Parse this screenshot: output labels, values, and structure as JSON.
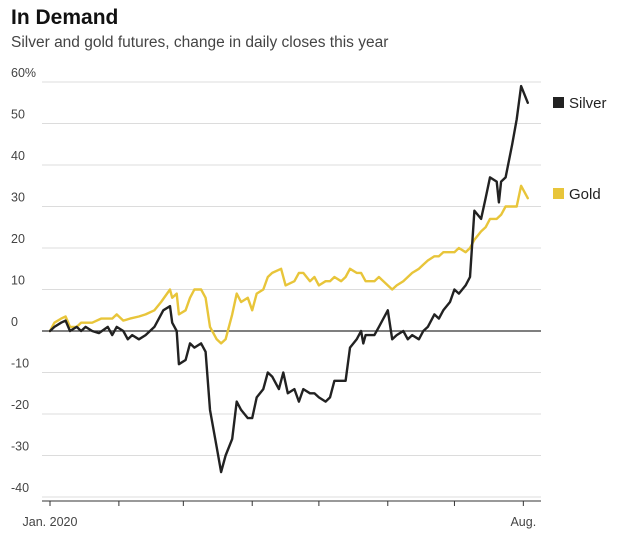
{
  "header": {
    "title": "In Demand",
    "subtitle": "Silver and gold futures, change in daily closes this year"
  },
  "chart_data": {
    "type": "line",
    "title": "In Demand",
    "subtitle": "Silver and gold futures, change in daily closes this year",
    "ylim": [
      -40,
      60
    ],
    "y_ticks": [
      {
        "value": 60,
        "label": "60%"
      },
      {
        "value": 50,
        "label": "50"
      },
      {
        "value": 40,
        "label": "40"
      },
      {
        "value": 30,
        "label": "30"
      },
      {
        "value": 20,
        "label": "20"
      },
      {
        "value": 10,
        "label": "10"
      },
      {
        "value": 0,
        "label": "0"
      },
      {
        "value": -10,
        "label": "-10"
      },
      {
        "value": -20,
        "label": "-20"
      },
      {
        "value": -30,
        "label": "-30"
      },
      {
        "value": -40,
        "label": "-40"
      }
    ],
    "x_range": [
      "2020-01-01",
      "2020-08-04"
    ],
    "x_ticks": [
      {
        "date": "2020-01-01",
        "label": "Jan. 2020"
      },
      {
        "date": "2020-02-01",
        "label": ""
      },
      {
        "date": "2020-03-01",
        "label": ""
      },
      {
        "date": "2020-04-01",
        "label": ""
      },
      {
        "date": "2020-05-01",
        "label": ""
      },
      {
        "date": "2020-06-01",
        "label": ""
      },
      {
        "date": "2020-07-01",
        "label": ""
      },
      {
        "date": "2020-08-01",
        "label": "Aug."
      }
    ],
    "grid": true,
    "legend": "right, at line ends",
    "series": [
      {
        "name": "Silver",
        "color": "#222222",
        "points": [
          [
            "2020-01-01",
            0
          ],
          [
            "2020-01-03",
            1
          ],
          [
            "2020-01-06",
            2
          ],
          [
            "2020-01-08",
            2.5
          ],
          [
            "2020-01-10",
            0
          ],
          [
            "2020-01-13",
            1
          ],
          [
            "2020-01-15",
            0
          ],
          [
            "2020-01-17",
            1
          ],
          [
            "2020-01-20",
            0
          ],
          [
            "2020-01-23",
            -0.5
          ],
          [
            "2020-01-27",
            1
          ],
          [
            "2020-01-29",
            -1
          ],
          [
            "2020-01-31",
            1
          ],
          [
            "2020-02-03",
            0
          ],
          [
            "2020-02-05",
            -2
          ],
          [
            "2020-02-07",
            -1
          ],
          [
            "2020-02-10",
            -2
          ],
          [
            "2020-02-13",
            -1
          ],
          [
            "2020-02-17",
            1
          ],
          [
            "2020-02-19",
            3
          ],
          [
            "2020-02-21",
            5
          ],
          [
            "2020-02-24",
            6
          ],
          [
            "2020-02-25",
            2
          ],
          [
            "2020-02-27",
            0
          ],
          [
            "2020-02-28",
            -8
          ],
          [
            "2020-03-02",
            -7
          ],
          [
            "2020-03-04",
            -3
          ],
          [
            "2020-03-06",
            -4
          ],
          [
            "2020-03-09",
            -3
          ],
          [
            "2020-03-11",
            -5
          ],
          [
            "2020-03-13",
            -19
          ],
          [
            "2020-03-16",
            -28
          ],
          [
            "2020-03-18",
            -34
          ],
          [
            "2020-03-20",
            -30
          ],
          [
            "2020-03-23",
            -26
          ],
          [
            "2020-03-25",
            -17
          ],
          [
            "2020-03-27",
            -19
          ],
          [
            "2020-03-30",
            -21
          ],
          [
            "2020-04-01",
            -21
          ],
          [
            "2020-04-03",
            -16
          ],
          [
            "2020-04-06",
            -14
          ],
          [
            "2020-04-08",
            -10
          ],
          [
            "2020-04-10",
            -11
          ],
          [
            "2020-04-13",
            -14
          ],
          [
            "2020-04-15",
            -10
          ],
          [
            "2020-04-17",
            -15
          ],
          [
            "2020-04-20",
            -14
          ],
          [
            "2020-04-22",
            -17
          ],
          [
            "2020-04-24",
            -14
          ],
          [
            "2020-04-27",
            -15
          ],
          [
            "2020-04-29",
            -15
          ],
          [
            "2020-05-01",
            -16
          ],
          [
            "2020-05-04",
            -17
          ],
          [
            "2020-05-06",
            -16
          ],
          [
            "2020-05-08",
            -12
          ],
          [
            "2020-05-11",
            -12
          ],
          [
            "2020-05-13",
            -12
          ],
          [
            "2020-05-15",
            -4
          ],
          [
            "2020-05-18",
            -2
          ],
          [
            "2020-05-20",
            0
          ],
          [
            "2020-05-21",
            -3
          ],
          [
            "2020-05-22",
            -1
          ],
          [
            "2020-05-26",
            -1
          ],
          [
            "2020-05-28",
            1
          ],
          [
            "2020-06-01",
            5
          ],
          [
            "2020-06-03",
            -2
          ],
          [
            "2020-06-05",
            -1
          ],
          [
            "2020-06-08",
            0
          ],
          [
            "2020-06-10",
            -2
          ],
          [
            "2020-06-12",
            -1
          ],
          [
            "2020-06-15",
            -2
          ],
          [
            "2020-06-17",
            0
          ],
          [
            "2020-06-19",
            1
          ],
          [
            "2020-06-22",
            4
          ],
          [
            "2020-06-24",
            3
          ],
          [
            "2020-06-26",
            5
          ],
          [
            "2020-06-29",
            7
          ],
          [
            "2020-07-01",
            10
          ],
          [
            "2020-07-03",
            9
          ],
          [
            "2020-07-06",
            11
          ],
          [
            "2020-07-08",
            13
          ],
          [
            "2020-07-10",
            29
          ],
          [
            "2020-07-13",
            27
          ],
          [
            "2020-07-15",
            32
          ],
          [
            "2020-07-17",
            37
          ],
          [
            "2020-07-20",
            36
          ],
          [
            "2020-07-21",
            31
          ],
          [
            "2020-07-22",
            36
          ],
          [
            "2020-07-24",
            37
          ],
          [
            "2020-07-27",
            45
          ],
          [
            "2020-07-29",
            51
          ],
          [
            "2020-07-31",
            59
          ],
          [
            "2020-08-03",
            55
          ]
        ]
      },
      {
        "name": "Gold",
        "color": "#e8c53a",
        "points": [
          [
            "2020-01-01",
            0
          ],
          [
            "2020-01-03",
            2
          ],
          [
            "2020-01-06",
            3
          ],
          [
            "2020-01-08",
            3.5
          ],
          [
            "2020-01-10",
            1
          ],
          [
            "2020-01-13",
            1
          ],
          [
            "2020-01-15",
            2
          ],
          [
            "2020-01-20",
            2
          ],
          [
            "2020-01-24",
            3
          ],
          [
            "2020-01-29",
            3
          ],
          [
            "2020-01-31",
            4
          ],
          [
            "2020-02-03",
            2.5
          ],
          [
            "2020-02-06",
            3
          ],
          [
            "2020-02-10",
            3.5
          ],
          [
            "2020-02-13",
            4
          ],
          [
            "2020-02-17",
            5
          ],
          [
            "2020-02-20",
            7
          ],
          [
            "2020-02-24",
            10
          ],
          [
            "2020-02-25",
            8
          ],
          [
            "2020-02-27",
            9
          ],
          [
            "2020-02-28",
            4
          ],
          [
            "2020-03-02",
            5
          ],
          [
            "2020-03-04",
            8
          ],
          [
            "2020-03-06",
            10
          ],
          [
            "2020-03-09",
            10
          ],
          [
            "2020-03-11",
            8
          ],
          [
            "2020-03-13",
            1
          ],
          [
            "2020-03-16",
            -2
          ],
          [
            "2020-03-18",
            -3
          ],
          [
            "2020-03-20",
            -2
          ],
          [
            "2020-03-23",
            4
          ],
          [
            "2020-03-25",
            9
          ],
          [
            "2020-03-27",
            7
          ],
          [
            "2020-03-30",
            8
          ],
          [
            "2020-04-01",
            5
          ],
          [
            "2020-04-03",
            9
          ],
          [
            "2020-04-06",
            10
          ],
          [
            "2020-04-08",
            13
          ],
          [
            "2020-04-10",
            14
          ],
          [
            "2020-04-14",
            15
          ],
          [
            "2020-04-16",
            11
          ],
          [
            "2020-04-20",
            12
          ],
          [
            "2020-04-22",
            14
          ],
          [
            "2020-04-24",
            14
          ],
          [
            "2020-04-27",
            12
          ],
          [
            "2020-04-29",
            13
          ],
          [
            "2020-05-01",
            11
          ],
          [
            "2020-05-04",
            12
          ],
          [
            "2020-05-06",
            12
          ],
          [
            "2020-05-08",
            13
          ],
          [
            "2020-05-11",
            12
          ],
          [
            "2020-05-13",
            13
          ],
          [
            "2020-05-15",
            15
          ],
          [
            "2020-05-18",
            14
          ],
          [
            "2020-05-20",
            14
          ],
          [
            "2020-05-22",
            12
          ],
          [
            "2020-05-26",
            12
          ],
          [
            "2020-05-28",
            13
          ],
          [
            "2020-06-01",
            11
          ],
          [
            "2020-06-03",
            10
          ],
          [
            "2020-06-05",
            11
          ],
          [
            "2020-06-08",
            12
          ],
          [
            "2020-06-10",
            13
          ],
          [
            "2020-06-12",
            14
          ],
          [
            "2020-06-15",
            15
          ],
          [
            "2020-06-17",
            16
          ],
          [
            "2020-06-19",
            17
          ],
          [
            "2020-06-22",
            18
          ],
          [
            "2020-06-24",
            18
          ],
          [
            "2020-06-26",
            19
          ],
          [
            "2020-06-29",
            19
          ],
          [
            "2020-07-01",
            19
          ],
          [
            "2020-07-03",
            20
          ],
          [
            "2020-07-06",
            19
          ],
          [
            "2020-07-08",
            20
          ],
          [
            "2020-07-10",
            22
          ],
          [
            "2020-07-13",
            24
          ],
          [
            "2020-07-15",
            25
          ],
          [
            "2020-07-17",
            27
          ],
          [
            "2020-07-20",
            27
          ],
          [
            "2020-07-22",
            28
          ],
          [
            "2020-07-24",
            30
          ],
          [
            "2020-07-27",
            30
          ],
          [
            "2020-07-29",
            30
          ],
          [
            "2020-07-31",
            35
          ],
          [
            "2020-08-03",
            32
          ]
        ]
      }
    ]
  }
}
